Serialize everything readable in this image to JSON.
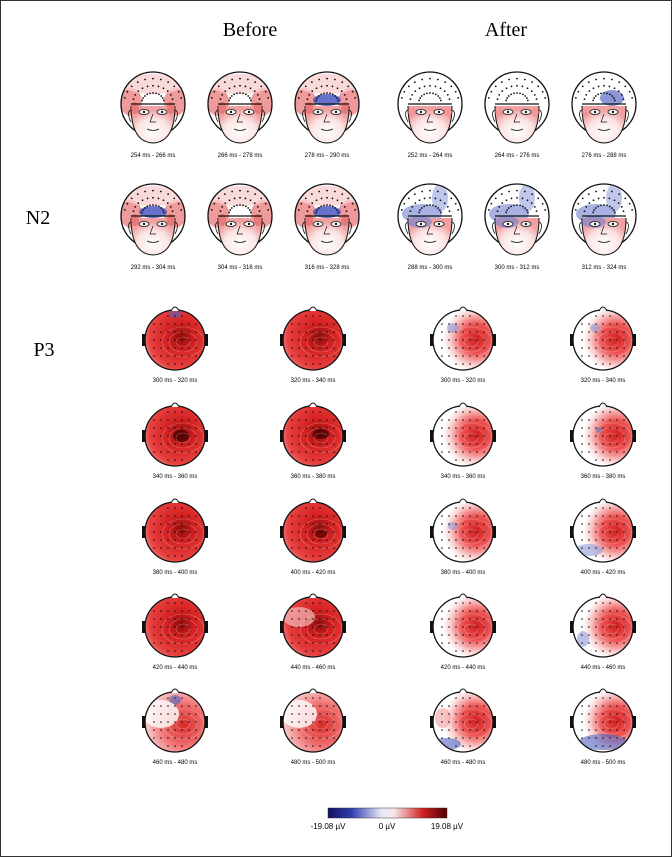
{
  "header": {
    "before": "Before",
    "after": "After"
  },
  "rows": {
    "n2": "N2",
    "p3": "P3"
  },
  "n2": {
    "before": [
      "254 ms - 266 ms",
      "266 ms - 278 ms",
      "278 ms - 290 ms",
      "292 ms - 304 ms",
      "304 ms - 316 ms",
      "316 ms - 328 ms"
    ],
    "after": [
      "252 ms - 264 ms",
      "264 ms - 276 ms",
      "276 ms - 288 ms",
      "288 ms - 300 ms",
      "300 ms - 312 ms",
      "312 ms - 324 ms"
    ]
  },
  "p3": {
    "before": [
      "300 ms - 320 ms",
      "320 ms - 340 ms",
      "340 ms - 360 ms",
      "360 ms - 380 ms",
      "380 ms - 400 ms",
      "400 ms - 420 ms",
      "420 ms - 440 ms",
      "440 ms - 460 ms",
      "460 ms - 480 ms",
      "480 ms - 500 ms"
    ],
    "after": [
      "300 ms - 320 ms",
      "320 ms - 340 ms",
      "340 ms - 360 ms",
      "360 ms - 380 ms",
      "380 ms - 400 ms",
      "400 ms - 420 ms",
      "420 ms - 440 ms",
      "440 ms - 460 ms",
      "460 ms - 480 ms",
      "480 ms - 500 ms"
    ]
  },
  "colorbar": {
    "min": "-19.08 µV",
    "mid": "0 µV",
    "max": "19.08 µV"
  }
}
